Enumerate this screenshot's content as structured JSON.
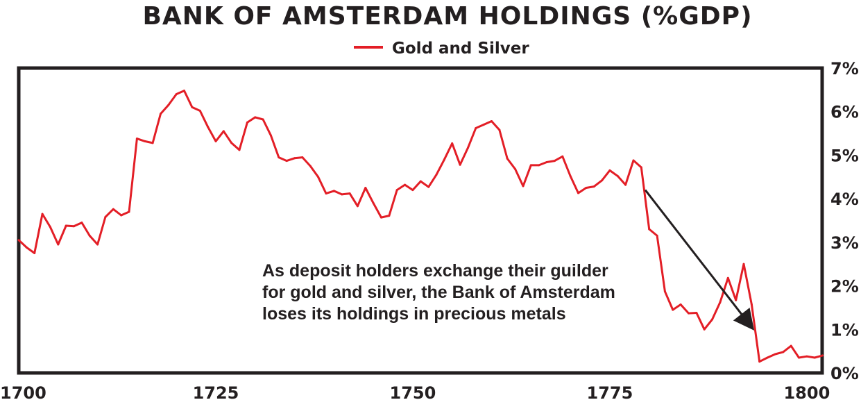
{
  "chart_data": {
    "type": "line",
    "title": "BANK OF AMSTERDAM HOLDINGS (%GDP)",
    "legend": {
      "position": "top-center",
      "entries": [
        "Gold and Silver"
      ]
    },
    "xlabel": "",
    "ylabel": "",
    "x_ticks": [
      "1700",
      "1725",
      "1750",
      "1775",
      "1800"
    ],
    "y_ticks": [
      "0%",
      "1%",
      "2%",
      "3%",
      "4%",
      "5%",
      "6%",
      "7%"
    ],
    "xlim": [
      1700,
      1802
    ],
    "ylim": [
      0,
      7
    ],
    "y_axis_side": "right",
    "grid": false,
    "series": [
      {
        "name": "Gold and Silver",
        "color": "#e31e26",
        "x": [
          1700,
          1701,
          1702,
          1703,
          1704,
          1705,
          1706,
          1707,
          1708,
          1709,
          1710,
          1711,
          1712,
          1713,
          1714,
          1715,
          1716,
          1717,
          1718,
          1719,
          1720,
          1721,
          1722,
          1723,
          1724,
          1725,
          1726,
          1727,
          1728,
          1729,
          1730,
          1731,
          1732,
          1733,
          1734,
          1735,
          1736,
          1737,
          1738,
          1739,
          1740,
          1741,
          1742,
          1743,
          1744,
          1745,
          1746,
          1747,
          1748,
          1749,
          1750,
          1751,
          1752,
          1753,
          1754,
          1755,
          1756,
          1757,
          1758,
          1759,
          1760,
          1761,
          1762,
          1763,
          1764,
          1765,
          1766,
          1767,
          1768,
          1769,
          1770,
          1771,
          1772,
          1773,
          1774,
          1775,
          1776,
          1777,
          1778,
          1779,
          1780,
          1781,
          1782,
          1783,
          1784,
          1785,
          1786,
          1787,
          1788,
          1789,
          1790,
          1791,
          1792,
          1793,
          1794,
          1795,
          1796,
          1797,
          1798,
          1799,
          1800,
          1801,
          1802
        ],
        "values": [
          3.05,
          2.88,
          2.75,
          3.65,
          3.35,
          2.95,
          3.38,
          3.37,
          3.45,
          3.15,
          2.95,
          3.58,
          3.76,
          3.62,
          3.7,
          5.38,
          5.32,
          5.28,
          5.95,
          6.15,
          6.4,
          6.48,
          6.1,
          6.02,
          5.65,
          5.32,
          5.55,
          5.28,
          5.12,
          5.75,
          5.87,
          5.82,
          5.45,
          4.95,
          4.87,
          4.93,
          4.95,
          4.75,
          4.5,
          4.12,
          4.18,
          4.1,
          4.12,
          3.83,
          4.25,
          3.9,
          3.57,
          3.61,
          4.2,
          4.32,
          4.2,
          4.4,
          4.27,
          4.55,
          4.9,
          5.27,
          4.78,
          5.17,
          5.62,
          5.7,
          5.78,
          5.58,
          4.92,
          4.68,
          4.29,
          4.77,
          4.77,
          4.84,
          4.87,
          4.97,
          4.52,
          4.13,
          4.25,
          4.28,
          4.42,
          4.65,
          4.52,
          4.32,
          4.88,
          4.72,
          3.3,
          3.15,
          1.87,
          1.45,
          1.57,
          1.37,
          1.38,
          1.0,
          1.23,
          1.62,
          2.18,
          1.67,
          2.5,
          1.57,
          0.26,
          0.35,
          0.43,
          0.48,
          0.62,
          0.35,
          0.38,
          0.35,
          0.4
        ]
      }
    ],
    "annotations": [
      {
        "lines": [
          "As deposit holders exchange their guilder",
          "for gold and silver, the Bank of Amsterdam",
          "loses its holdings in precious metals"
        ],
        "arrow": {
          "from": [
            1779.5,
            4.2
          ],
          "to": [
            1793,
            1.05
          ]
        }
      }
    ]
  }
}
